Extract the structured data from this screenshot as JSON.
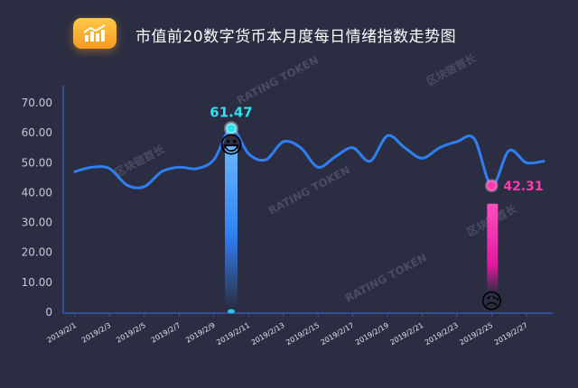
{
  "title": "市值前20数字货币本月度每日情绪指数走势图",
  "icon": "bar-chart-icon",
  "watermarks": [
    "区块链首长",
    "RATING TOKEN"
  ],
  "chart_data": {
    "type": "line",
    "title": "市值前20数字货币本月度每日情绪指数走势图",
    "xlabel": "",
    "ylabel": "",
    "ylim": [
      0,
      70
    ],
    "yticks": [
      "0",
      "10.00",
      "20.00",
      "30.00",
      "40.00",
      "50.00",
      "60.00",
      "70.00"
    ],
    "x_tick_labels": [
      "2019/2/1",
      "2019/2/3",
      "2019/2/5",
      "2019/2/7",
      "2019/2/9",
      "2019/2/11",
      "2019/2/13",
      "2019/2/15",
      "2019/2/17",
      "2019/2/19",
      "2019/2/21",
      "2019/2/23",
      "2019/2/25",
      "2019/2/27"
    ],
    "series": [
      {
        "values": [
          {
            "x": "2019/2/1",
            "y": 47.0
          },
          {
            "x": "2019/2/2",
            "y": 48.5
          },
          {
            "x": "2019/2/3",
            "y": 48.0
          },
          {
            "x": "2019/2/4",
            "y": 42.5
          },
          {
            "x": "2019/2/5",
            "y": 42.0
          },
          {
            "x": "2019/2/6",
            "y": 47.0
          },
          {
            "x": "2019/2/7",
            "y": 48.5
          },
          {
            "x": "2019/2/8",
            "y": 48.0
          },
          {
            "x": "2019/2/9",
            "y": 51.0
          },
          {
            "x": "2019/2/10",
            "y": 61.47
          },
          {
            "x": "2019/2/11",
            "y": 53.0
          },
          {
            "x": "2019/2/12",
            "y": 51.0
          },
          {
            "x": "2019/2/13",
            "y": 57.0
          },
          {
            "x": "2019/2/14",
            "y": 55.0
          },
          {
            "x": "2019/2/15",
            "y": 48.5
          },
          {
            "x": "2019/2/16",
            "y": 52.0
          },
          {
            "x": "2019/2/17",
            "y": 55.0
          },
          {
            "x": "2019/2/18",
            "y": 50.5
          },
          {
            "x": "2019/2/19",
            "y": 59.0
          },
          {
            "x": "2019/2/20",
            "y": 55.0
          },
          {
            "x": "2019/2/21",
            "y": 51.5
          },
          {
            "x": "2019/2/22",
            "y": 55.0
          },
          {
            "x": "2019/2/23",
            "y": 57.0
          },
          {
            "x": "2019/2/24",
            "y": 58.0
          },
          {
            "x": "2019/2/25",
            "y": 42.31
          },
          {
            "x": "2019/2/26",
            "y": 54.0
          },
          {
            "x": "2019/2/27",
            "y": 50.0
          },
          {
            "x": "2019/2/28",
            "y": 50.5
          }
        ]
      }
    ],
    "annotations": [
      {
        "x": "2019/2/10",
        "label": "61.47",
        "kind": "max",
        "color": "#2ee0f0",
        "emoji": "😃"
      },
      {
        "x": "2019/2/25",
        "label": "42.31",
        "kind": "min",
        "color": "#ff3bb0",
        "emoji": "😥"
      }
    ],
    "highlight_ticks": {
      "2019/2/11": "#27c3e8",
      "2019/2/25": "#ff3bb0"
    },
    "line_color": "#2f7ff2",
    "grid": false
  }
}
